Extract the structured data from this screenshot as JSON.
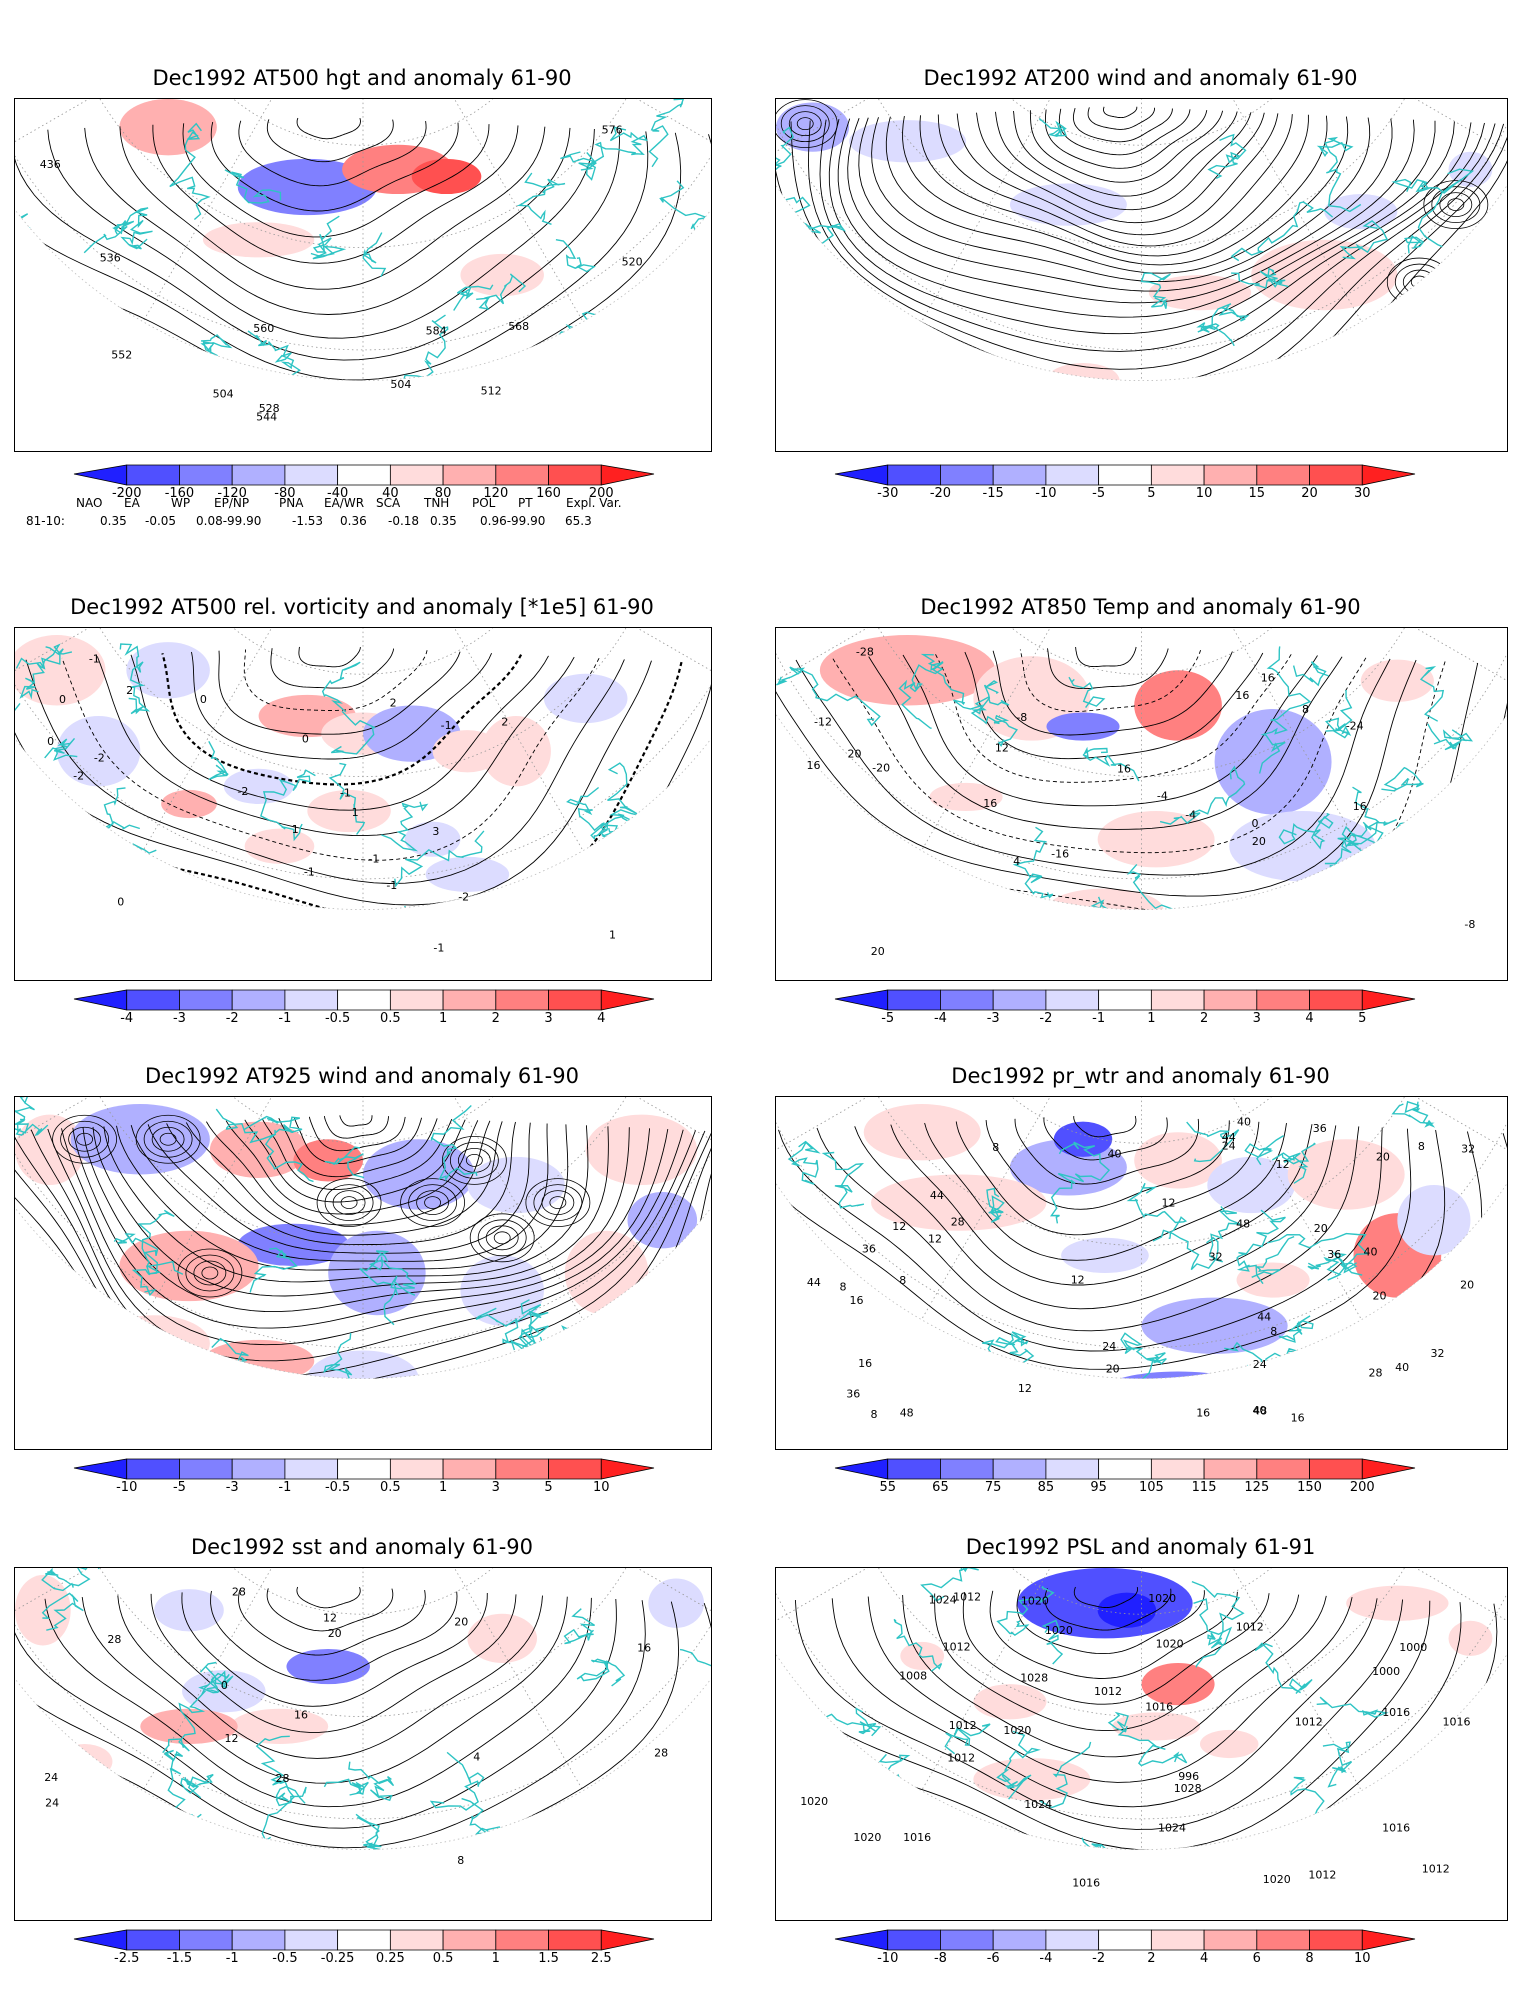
{
  "panels": [
    {
      "id": "p1",
      "title": "Dec1992 AT500 hgt and anomaly 61-90",
      "colorbar": [
        "-200",
        "-160",
        "-120",
        "-80",
        "-40",
        "40",
        "80",
        "120",
        "160",
        "200"
      ],
      "contour_labels": [
        "436",
        "504",
        "504",
        "512",
        "520",
        "528",
        "536",
        "544",
        "552",
        "560",
        "568",
        "576",
        "584"
      ]
    },
    {
      "id": "p2",
      "title": "Dec1992 AT200 wind and anomaly 61-90",
      "colorbar": [
        "-30",
        "-20",
        "-15",
        "-10",
        "-5",
        "5",
        "10",
        "15",
        "20",
        "30"
      ],
      "contour_labels": []
    },
    {
      "id": "p3",
      "title": "Dec1992 AT500 rel. vorticity and anomaly [*1e5] 61-90",
      "colorbar": [
        "-4",
        "-3",
        "-2",
        "-1",
        "-0.5",
        "0.5",
        "1",
        "2",
        "3",
        "4"
      ],
      "contour_labels": [
        "0",
        "0",
        "-2",
        "-1",
        "-2",
        "2",
        "3",
        "-2",
        "2",
        "0",
        "-1",
        "-1",
        "-2",
        "1",
        "1",
        "-1",
        "-1",
        "0",
        "1",
        "2",
        "0",
        "-1",
        "-1"
      ]
    },
    {
      "id": "p4",
      "title": "Dec1992 AT850 Temp and anomaly 61-90",
      "colorbar": [
        "-5",
        "-4",
        "-3",
        "-2",
        "-1",
        "1",
        "2",
        "3",
        "4",
        "5"
      ],
      "contour_labels": [
        "16",
        "16",
        "-24",
        "-28",
        "-20",
        "-12",
        "-16",
        "-8",
        "-4",
        "-8",
        "-4",
        "0",
        "4",
        "8",
        "12",
        "16",
        "16",
        "20",
        "20",
        "16",
        "20",
        "16"
      ]
    },
    {
      "id": "p5",
      "title": "Dec1992 AT925 wind and anomaly 61-90",
      "colorbar": [
        "-10",
        "-5",
        "-3",
        "-1",
        "-0.5",
        "0.5",
        "1",
        "3",
        "5",
        "10"
      ],
      "contour_labels": []
    },
    {
      "id": "p6",
      "title": "Dec1992 pr_wtr and anomaly 61-90",
      "colorbar": [
        "55",
        "65",
        "75",
        "85",
        "95",
        "105",
        "115",
        "125",
        "150",
        "200"
      ],
      "contour_labels": [
        "44",
        "40",
        "28",
        "32",
        "28",
        "36",
        "40",
        "44",
        "48",
        "36",
        "40",
        "44",
        "20",
        "24",
        "16",
        "12",
        "8",
        "8",
        "12",
        "12",
        "20",
        "8",
        "8",
        "16",
        "12",
        "20",
        "24",
        "32",
        "36",
        "40",
        "44",
        "48",
        "16",
        "20",
        "24",
        "48",
        "40",
        "36",
        "32",
        "12",
        "8",
        "8",
        "12",
        "16",
        "20"
      ]
    },
    {
      "id": "p7",
      "title": "Dec1992 sst and anomaly 61-90",
      "colorbar": [
        "-2.5",
        "-1.5",
        "-1",
        "-0.5",
        "-0.25",
        "0.25",
        "0.5",
        "1",
        "1.5",
        "2.5"
      ],
      "contour_labels": [
        "24",
        "28",
        "28",
        "20",
        "0",
        "4",
        "8",
        "12",
        "16",
        "20",
        "16",
        "12",
        "24",
        "28",
        "28"
      ]
    },
    {
      "id": "p8",
      "title": "Dec1992 PSL and anomaly 61-91",
      "colorbar": [
        "-10",
        "-8",
        "-6",
        "-4",
        "-2",
        "2",
        "4",
        "6",
        "8",
        "10"
      ],
      "contour_labels": [
        "1020",
        "1016",
        "1016",
        "1000",
        "1028",
        "1028",
        "1016",
        "1012",
        "1012",
        "1020",
        "1024",
        "1020",
        "1012",
        "1008",
        "1000",
        "996",
        "1024",
        "1020",
        "1024",
        "1016",
        "1020",
        "1020",
        "1020",
        "1012",
        "1012",
        "1016",
        "1020",
        "1016",
        "1012",
        "1012",
        "1012",
        "1012"
      ]
    }
  ],
  "teleconnection": {
    "headers": [
      "NAO",
      "EA",
      "WP",
      "EP/NP",
      "PNA",
      "EA/WR",
      "SCA",
      "TNH",
      "POL",
      "PT",
      "Expl. Var."
    ],
    "row_label": "81-10:",
    "values": [
      "0.35",
      "-0.05",
      "0.08-99.90",
      "-1.53",
      "0.36",
      "-0.18",
      "0.35",
      "0.96-99.90",
      "65.3"
    ]
  },
  "colors": {
    "coast": "#2ec4c4",
    "contour": "#000000",
    "blue_strong": "#2020ff",
    "red_strong": "#ff2020"
  }
}
